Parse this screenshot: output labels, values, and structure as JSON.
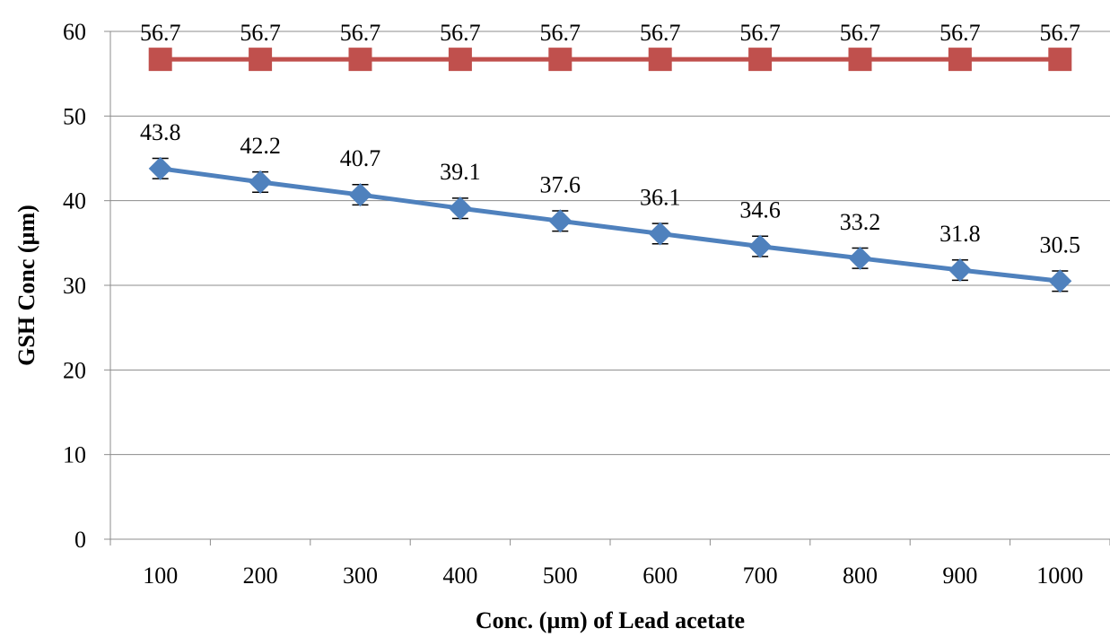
{
  "chart_data": {
    "type": "line",
    "title": "",
    "xlabel": "Conc. (µm) of Lead acetate",
    "ylabel": "GSH Conc (µm)",
    "categories": [
      "100",
      "200",
      "300",
      "400",
      "500",
      "600",
      "700",
      "800",
      "900",
      "1000"
    ],
    "ylim": [
      0,
      60
    ],
    "yticks": [
      0,
      10,
      20,
      30,
      40,
      50,
      60
    ],
    "grid": true,
    "legend": "none",
    "series": [
      {
        "values": [
          56.7,
          56.7,
          56.7,
          56.7,
          56.7,
          56.7,
          56.7,
          56.7,
          56.7,
          56.7
        ],
        "labels": [
          "56.7",
          "56.7",
          "56.7",
          "56.7",
          "56.7",
          "56.7",
          "56.7",
          "56.7",
          "56.7",
          "56.7"
        ],
        "marker": "square",
        "color": "#C0504D"
      },
      {
        "values": [
          43.8,
          42.2,
          40.7,
          39.1,
          37.6,
          36.1,
          34.6,
          33.2,
          31.8,
          30.5
        ],
        "labels": [
          "43.8",
          "42.2",
          "40.7",
          "39.1",
          "37.6",
          "36.1",
          "34.6",
          "33.2",
          "31.8",
          "30.5"
        ],
        "error": [
          1.2,
          1.2,
          1.2,
          1.2,
          1.2,
          1.2,
          1.2,
          1.2,
          1.2,
          1.2
        ],
        "marker": "diamond",
        "color": "#4F81BD"
      }
    ]
  }
}
